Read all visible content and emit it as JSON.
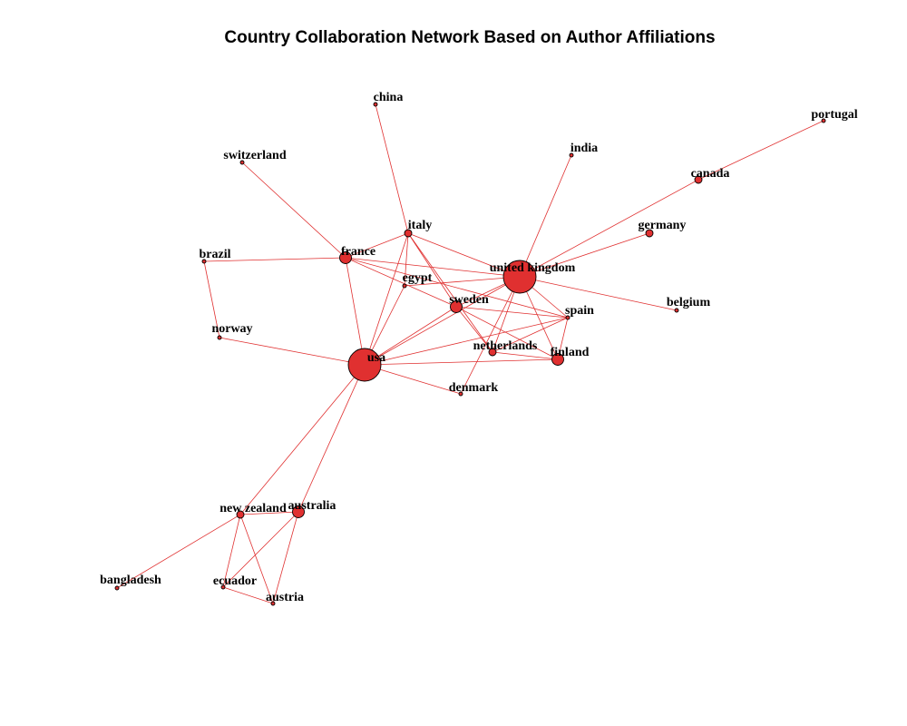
{
  "title": "Country Collaboration Network Based on Author Affiliations",
  "colors": {
    "node_fill": "#e03030",
    "node_stroke": "#000000",
    "edge": "#e03030",
    "label": "#000000"
  },
  "nodes": [
    {
      "id": "usa",
      "label": "usa",
      "weight": 5
    },
    {
      "id": "uk",
      "label": "united kingdom",
      "weight": 5
    },
    {
      "id": "france",
      "label": "france",
      "weight": 3
    },
    {
      "id": "sweden",
      "label": "sweden",
      "weight": 3
    },
    {
      "id": "finland",
      "label": "finland",
      "weight": 3
    },
    {
      "id": "australia",
      "label": "australia",
      "weight": 3
    },
    {
      "id": "new_zealand",
      "label": "new zealand",
      "weight": 2
    },
    {
      "id": "italy",
      "label": "italy",
      "weight": 2
    },
    {
      "id": "canada",
      "label": "canada",
      "weight": 2
    },
    {
      "id": "germany",
      "label": "germany",
      "weight": 2
    },
    {
      "id": "netherlands",
      "label": "netherlands",
      "weight": 2
    },
    {
      "id": "china",
      "label": "china",
      "weight": 1
    },
    {
      "id": "portugal",
      "label": "portugal",
      "weight": 1
    },
    {
      "id": "india",
      "label": "india",
      "weight": 1
    },
    {
      "id": "switzerland",
      "label": "switzerland",
      "weight": 1
    },
    {
      "id": "brazil",
      "label": "brazil",
      "weight": 1
    },
    {
      "id": "egypt",
      "label": "egypt",
      "weight": 1
    },
    {
      "id": "belgium",
      "label": "belgium",
      "weight": 1
    },
    {
      "id": "spain",
      "label": "spain",
      "weight": 1
    },
    {
      "id": "norway",
      "label": "norway",
      "weight": 1
    },
    {
      "id": "denmark",
      "label": "denmark",
      "weight": 1
    },
    {
      "id": "bangladesh",
      "label": "bangladesh",
      "weight": 1
    },
    {
      "id": "ecuador",
      "label": "ecuador",
      "weight": 1
    },
    {
      "id": "austria",
      "label": "austria",
      "weight": 1
    }
  ],
  "edges": [
    [
      "usa",
      "uk"
    ],
    [
      "usa",
      "france"
    ],
    [
      "usa",
      "sweden"
    ],
    [
      "usa",
      "italy"
    ],
    [
      "usa",
      "egypt"
    ],
    [
      "usa",
      "finland"
    ],
    [
      "usa",
      "norway"
    ],
    [
      "usa",
      "denmark"
    ],
    [
      "usa",
      "australia"
    ],
    [
      "usa",
      "new_zealand"
    ],
    [
      "usa",
      "spain"
    ],
    [
      "uk",
      "france"
    ],
    [
      "uk",
      "sweden"
    ],
    [
      "uk",
      "italy"
    ],
    [
      "uk",
      "india"
    ],
    [
      "uk",
      "canada"
    ],
    [
      "uk",
      "germany"
    ],
    [
      "uk",
      "belgium"
    ],
    [
      "uk",
      "netherlands"
    ],
    [
      "uk",
      "finland"
    ],
    [
      "uk",
      "spain"
    ],
    [
      "uk",
      "denmark"
    ],
    [
      "uk",
      "egypt"
    ],
    [
      "france",
      "brazil"
    ],
    [
      "france",
      "switzerland"
    ],
    [
      "france",
      "italy"
    ],
    [
      "france",
      "sweden"
    ],
    [
      "france",
      "spain"
    ],
    [
      "italy",
      "china"
    ],
    [
      "italy",
      "netherlands"
    ],
    [
      "italy",
      "sweden"
    ],
    [
      "italy",
      "egypt"
    ],
    [
      "sweden",
      "netherlands"
    ],
    [
      "sweden",
      "finland"
    ],
    [
      "sweden",
      "spain"
    ],
    [
      "netherlands",
      "finland"
    ],
    [
      "netherlands",
      "spain"
    ],
    [
      "finland",
      "spain"
    ],
    [
      "canada",
      "portugal"
    ],
    [
      "brazil",
      "norway"
    ],
    [
      "australia",
      "new_zealand"
    ],
    [
      "australia",
      "ecuador"
    ],
    [
      "australia",
      "austria"
    ],
    [
      "new_zealand",
      "bangladesh"
    ],
    [
      "new_zealand",
      "ecuador"
    ],
    [
      "new_zealand",
      "austria"
    ],
    [
      "ecuador",
      "austria"
    ]
  ]
}
